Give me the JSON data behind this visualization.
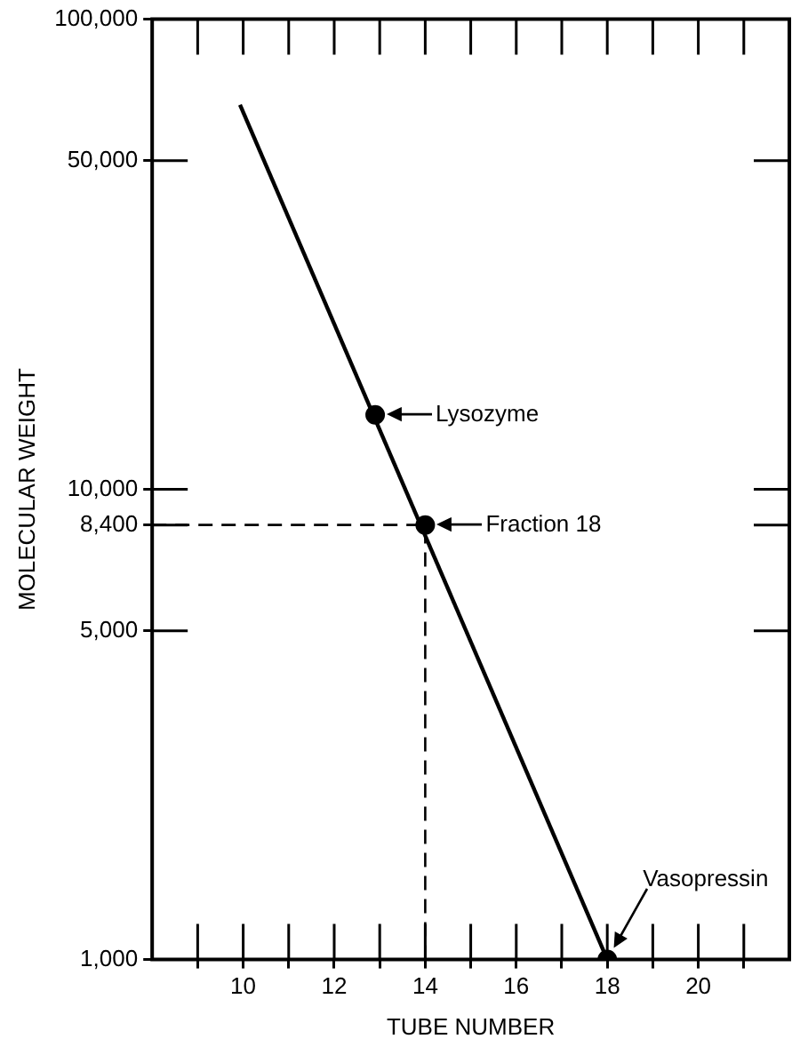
{
  "chart_data": {
    "type": "line",
    "xlabel": "TUBE NUMBER",
    "ylabel": "MOLECULAR WEIGHT",
    "log": "y",
    "grid": false,
    "legend": false,
    "xlim": [
      8,
      22
    ],
    "xticks": [
      {
        "value": 9,
        "label": null
      },
      10,
      {
        "value": 11,
        "label": null
      },
      12,
      {
        "value": 13,
        "label": null
      },
      14,
      {
        "value": 15,
        "label": null
      },
      16,
      {
        "value": 17,
        "label": null
      },
      18,
      {
        "value": 19,
        "label": null
      },
      20,
      {
        "value": 21,
        "label": null
      }
    ],
    "ylim": [
      1000,
      100000
    ],
    "yticks": [
      {
        "value": 1000,
        "label": "1,000"
      },
      {
        "value": 5000,
        "label": "5,000"
      },
      {
        "value": 8400,
        "label": "8,400"
      },
      {
        "value": 10000,
        "label": "10,000"
      },
      {
        "value": 50000,
        "label": "50,000"
      },
      {
        "value": 100000,
        "label": "100,000"
      }
    ],
    "series": [
      {
        "color": "#000000",
        "x": [
          9.93,
          18
        ],
        "values": [
          65800,
          1000
        ],
        "marker": "none",
        "line_style": "solid"
      },
      {
        "color": "#000000",
        "x": [
          8,
          14,
          14
        ],
        "values": [
          8400,
          8400,
          1000
        ],
        "marker": "none",
        "line_style": "dashed"
      },
      {
        "type": "scatter",
        "color": "#000000",
        "x": [
          12.9,
          14,
          18
        ],
        "values": [
          14400,
          8400,
          1000
        ],
        "marker": "circle"
      }
    ],
    "annotations": [
      {
        "text": "Lysozyme",
        "x": 12.9,
        "y": 14400
      },
      {
        "text": "Fraction 18",
        "x": 14,
        "y": 8400
      },
      {
        "text": "Vasopressin",
        "x": 18,
        "y": 1000
      }
    ]
  }
}
